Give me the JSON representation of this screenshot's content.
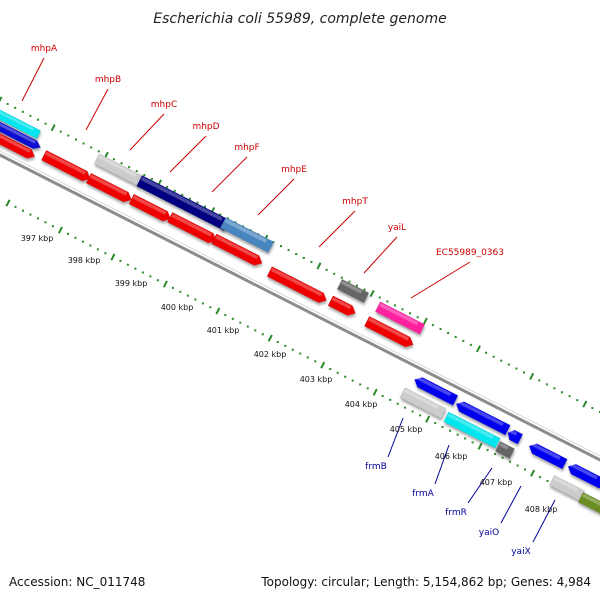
{
  "title": "Escherichia coli 55989, complete genome",
  "footer": {
    "accession": "Accession: NC_011748",
    "topology": "Topology: circular; Length: 5,154,862 bp; Genes: 4,984"
  },
  "colors": {
    "forward_label": "#cc0000",
    "reverse_label": "#000099",
    "tick": "#2a8a2a",
    "backbone": "#8c8c8c"
  },
  "kbp_labels": [
    "397 kbp",
    "398 kbp",
    "399 kbp",
    "400 kbp",
    "401 kbp",
    "402 kbp",
    "403 kbp",
    "404 kbp",
    "405 kbp",
    "406 kbp",
    "407 kbp",
    "408 kbp"
  ],
  "forward_genes": [
    "mhpA",
    "mhpB",
    "mhpC",
    "mhpD",
    "mhpF",
    "mhpE",
    "mhpT",
    "yaiL",
    "EC55989_0363"
  ],
  "reverse_genes": [
    "frmB",
    "frmA",
    "frmR",
    "yaiO",
    "yaiX"
  ]
}
